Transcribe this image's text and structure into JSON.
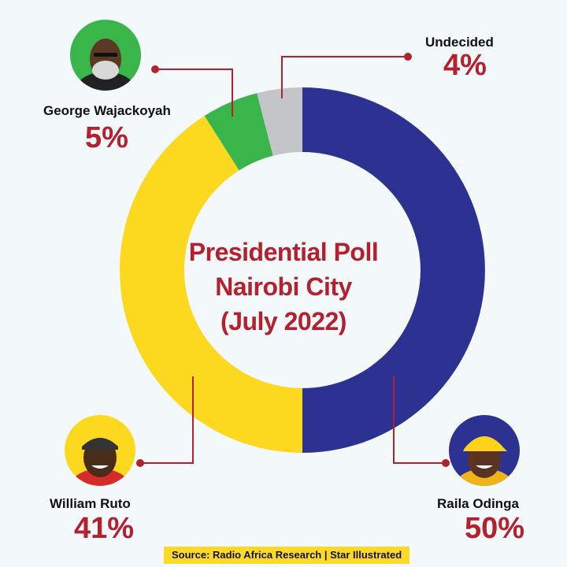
{
  "chart_data": {
    "type": "pie",
    "title_lines": [
      "Presidential Poll",
      "Nairobi City",
      "(July 2022)"
    ],
    "slices": [
      {
        "name": "Raila Odinga",
        "value": 50,
        "label": "50%",
        "color": "#2d3191"
      },
      {
        "name": "William Ruto",
        "value": 41,
        "label": "41%",
        "color": "#fcd91f"
      },
      {
        "name": "George Wajackoyah",
        "value": 5,
        "label": "5%",
        "color": "#3ab54a"
      },
      {
        "name": "Undecided",
        "value": 4,
        "label": "4%",
        "color": "#c3c5c8"
      }
    ],
    "source": "Source: Radio Africa Research | Star Illustrated"
  },
  "colors": {
    "accent": "#b5202e",
    "leader_line": "#b5202e",
    "background": "#f3f8fb"
  },
  "avatars": {
    "wajackoyah": {
      "bg": "#3ab54a",
      "icon": "portrait-icon"
    },
    "ruto": {
      "bg": "#fcd91f",
      "icon": "portrait-icon"
    },
    "odinga": {
      "bg": "#2d3191",
      "icon": "portrait-icon"
    }
  }
}
